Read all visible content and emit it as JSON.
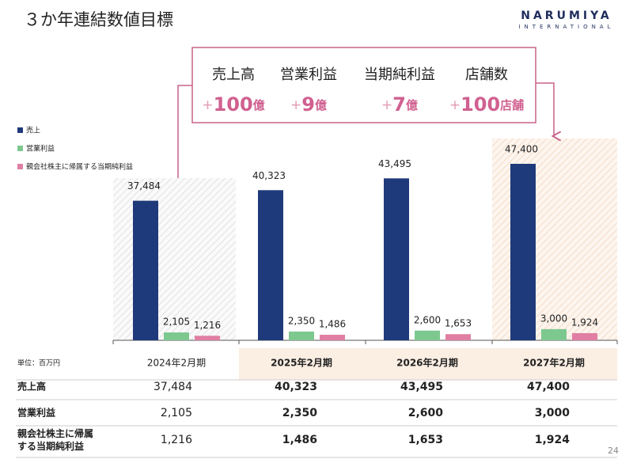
{
  "title": "３か年連結数値目標",
  "logo": {
    "name": "NARUMIYA",
    "sub": "INTERNATIONAL"
  },
  "targets": [
    {
      "label": "売上高",
      "sign": "+",
      "number": "100",
      "unit": "億"
    },
    {
      "label": "営業利益",
      "sign": "+",
      "number": "9",
      "unit": "億"
    },
    {
      "label": "当期純利益",
      "sign": "+",
      "number": "7",
      "unit": "億"
    },
    {
      "label": "店舗数",
      "sign": "+",
      "number": "100",
      "unit": "店舗"
    }
  ],
  "chart_data": {
    "type": "bar",
    "categories": [
      "2024年2月期",
      "2025年2月期",
      "2026年2月期",
      "2027年2月期"
    ],
    "series": [
      {
        "name": "売上",
        "color": "#1f3a7a",
        "values": [
          37484,
          40323,
          43495,
          47400
        ],
        "value_labels": [
          "37,484",
          "40,323",
          "43,495",
          "47,400"
        ]
      },
      {
        "name": "営業利益",
        "color": "#7dc88f",
        "values": [
          2105,
          2350,
          2600,
          3000
        ],
        "value_labels": [
          "2,105",
          "2,350",
          "2,600",
          "3,000"
        ]
      },
      {
        "name": "親会社株主に帰属する当期純利益",
        "color": "#e07fa3",
        "values": [
          1216,
          1486,
          1653,
          1924
        ],
        "value_labels": [
          "1,216",
          "1,486",
          "1,653",
          "1,924"
        ]
      }
    ]
  },
  "table": {
    "unit": "単位：百万円",
    "row_labels": [
      "売上高",
      "営業利益",
      "親会社株主に帰属する当期純利益"
    ]
  },
  "page_number": "24"
}
